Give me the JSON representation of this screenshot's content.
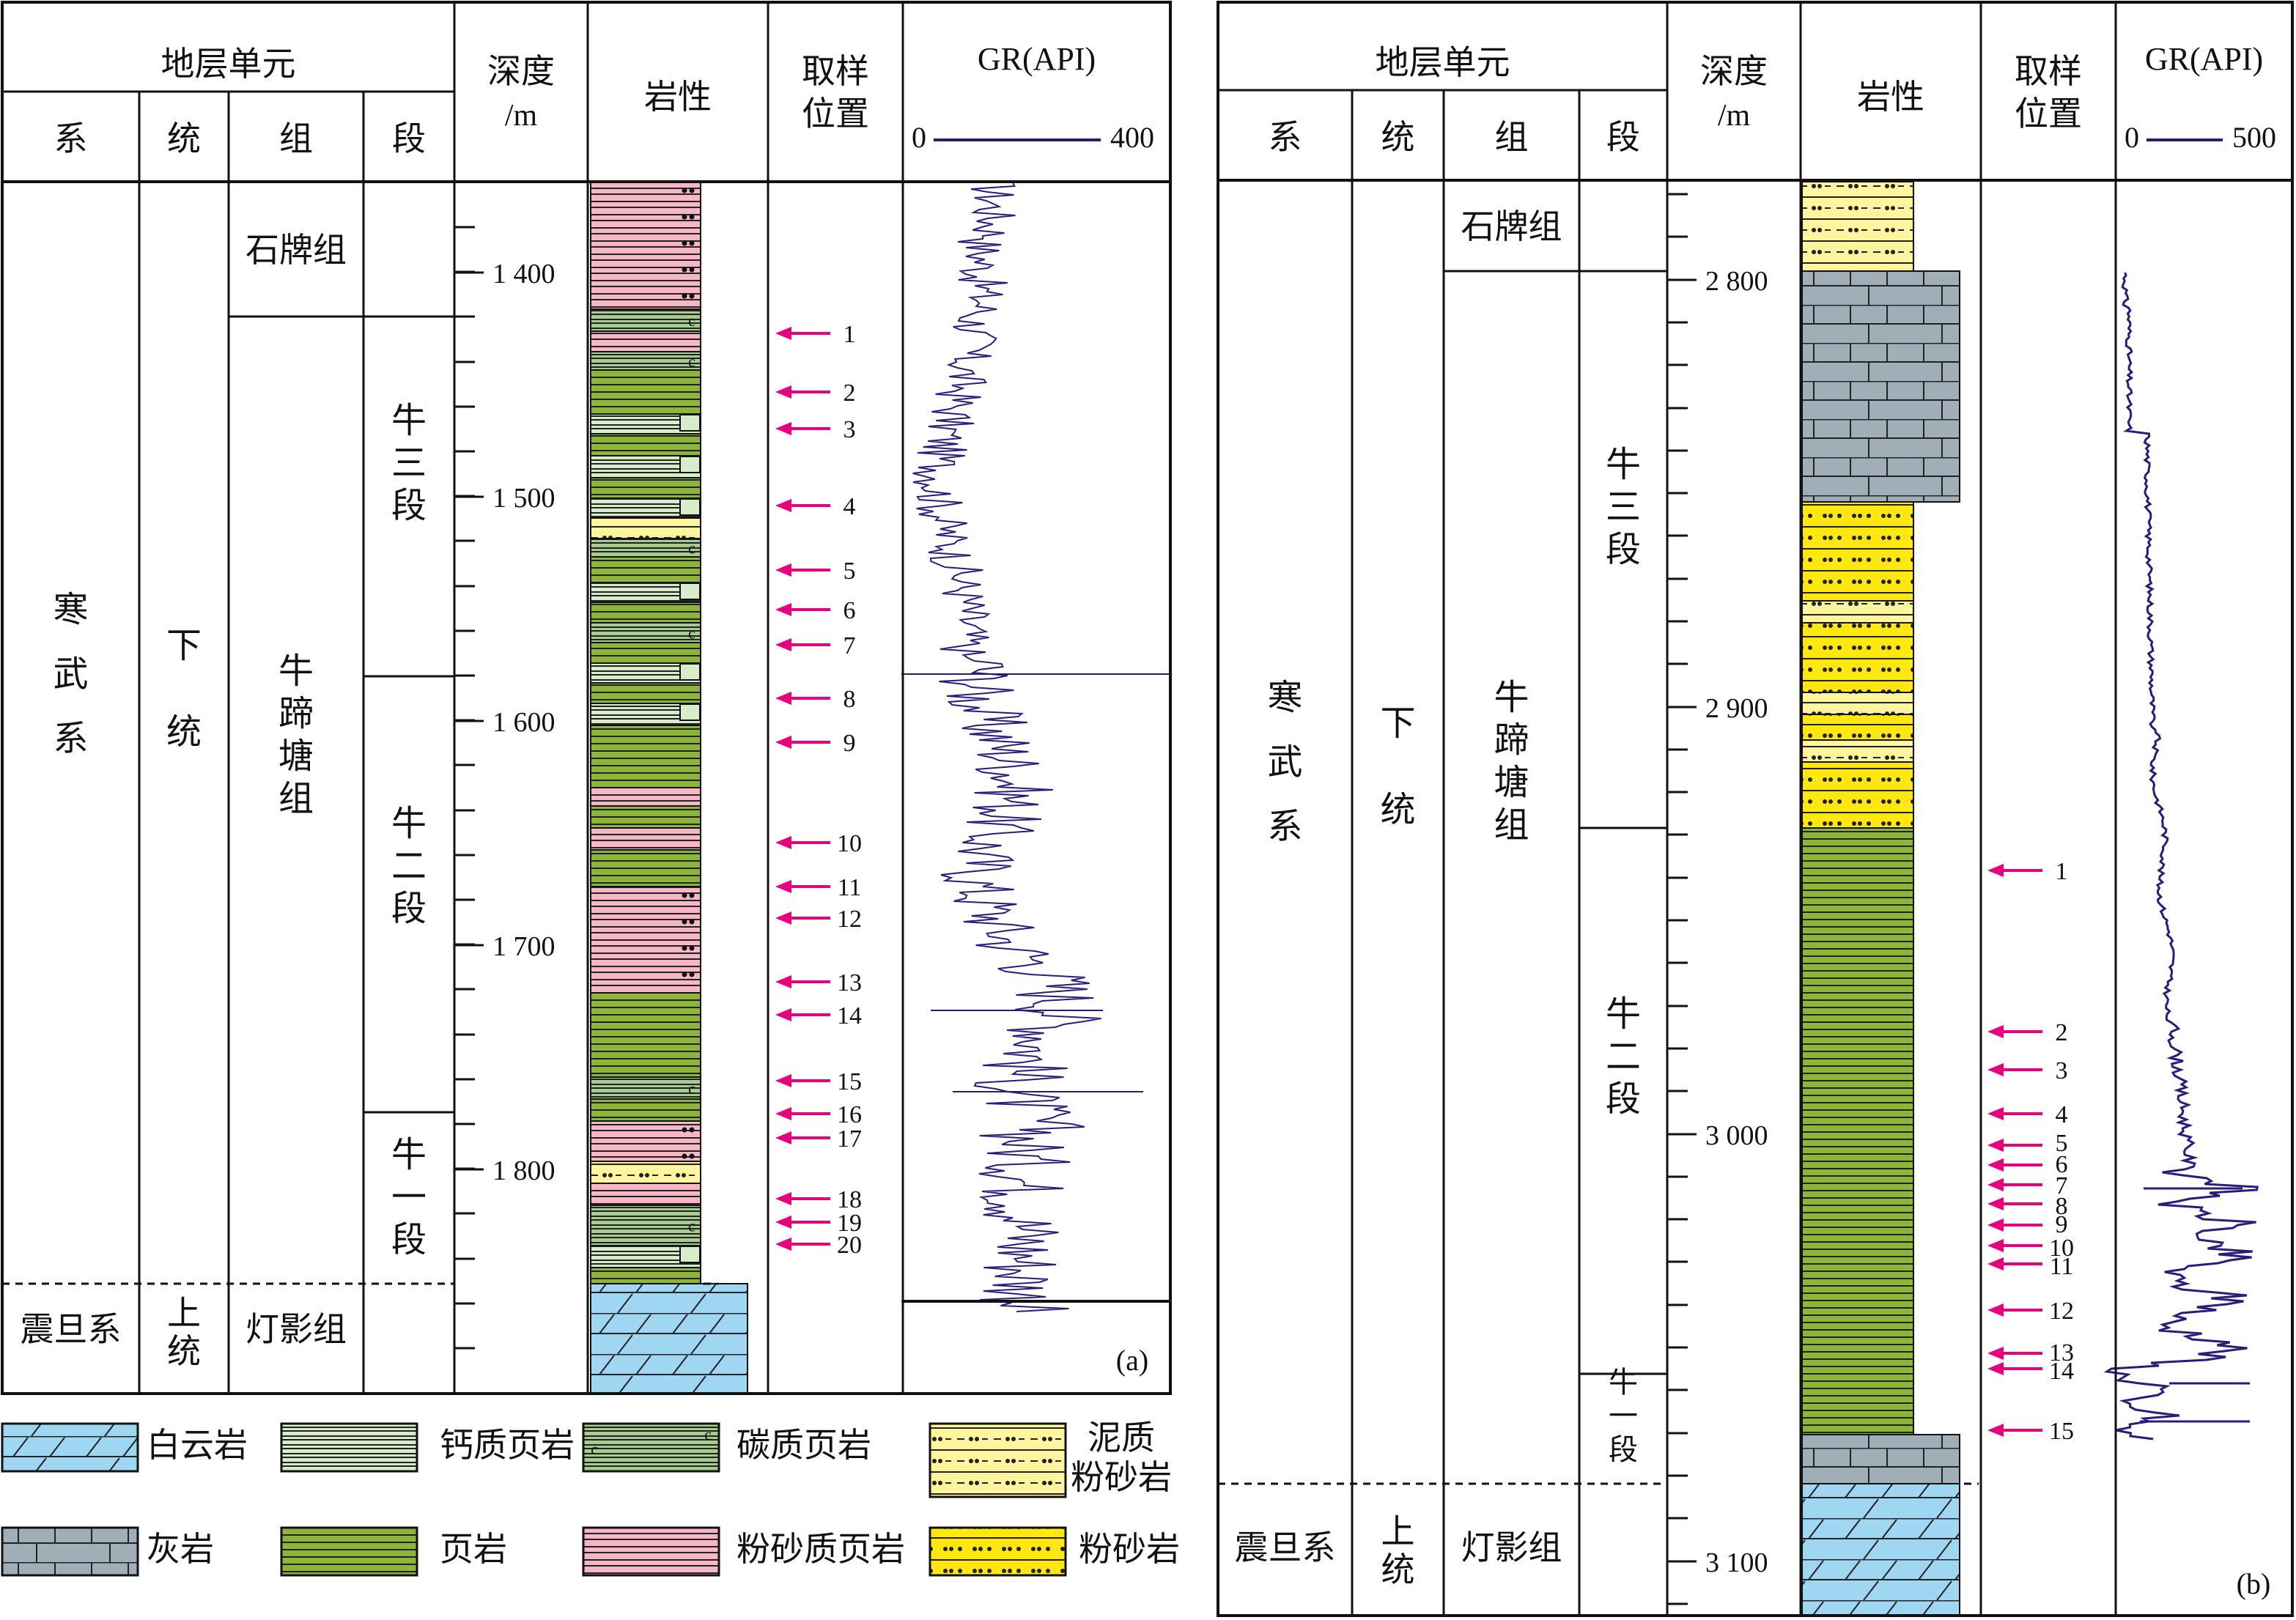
{
  "colors": {
    "pink": "#f7b6c8",
    "green": "#8db53c",
    "lightgreen": "#d9ecc9",
    "midgreen": "#a7cc8f",
    "yellow": "#ffe70f",
    "paleyellow": "#fff59e",
    "gray": "#9faeb7",
    "blue": "#9fd6f2",
    "arrow": "#e6007e",
    "curve": "#2d1a7a"
  },
  "header": {
    "strat_unit": "地层单元",
    "system": "系",
    "series": "统",
    "formation": "组",
    "member": "段",
    "depth": "深度",
    "depth_unit": "/m",
    "lithology": "岩性",
    "sample1": "取样",
    "sample2": "位置",
    "gr": "GR(API)"
  },
  "panel_a": {
    "tag": "(a)",
    "gr_min": "0",
    "gr_max": "400",
    "depth_ticks": [
      "1 400",
      "1 500",
      "1 600",
      "1 700",
      "1 800"
    ],
    "units": {
      "system": "寒武系",
      "series": "下统",
      "fm_top": "石牌组",
      "fm_main": "牛蹄塘组",
      "m3": "牛三段",
      "m2": "牛二段",
      "m1": "牛一段",
      "sys_base": "震旦系",
      "ser_base1": "上",
      "ser_base2": "统",
      "fm_base": "灯影组"
    },
    "samples": [
      "1",
      "2",
      "3",
      "4",
      "5",
      "6",
      "7",
      "8",
      "9",
      "10",
      "11",
      "12",
      "13",
      "14",
      "15",
      "16",
      "17",
      "18",
      "19",
      "20"
    ]
  },
  "panel_b": {
    "tag": "(b)",
    "gr_min": "0",
    "gr_max": "500",
    "depth_ticks": [
      "2 800",
      "2 900",
      "3 000",
      "3 100"
    ],
    "units": {
      "system": "寒武系",
      "series": "下统",
      "fm_top": "石牌组",
      "fm_main": "牛蹄塘组",
      "m3": "牛三段",
      "m2": "牛二段",
      "m1": "牛一段",
      "sys_base": "震旦系",
      "ser_base1": "上",
      "ser_base2": "统",
      "fm_base": "灯影组"
    },
    "samples": [
      "1",
      "2",
      "3",
      "4",
      "5",
      "6",
      "7",
      "8",
      "9",
      "10",
      "11",
      "12",
      "13",
      "14",
      "15"
    ]
  },
  "legend": {
    "dolomite": "白云岩",
    "calc_shale": "钙质页岩",
    "carb_shale": "碳质页岩",
    "mud_silt1": "泥质",
    "mud_silt2": "粉砂岩",
    "limestone": "灰岩",
    "shale": "页岩",
    "silty_shale": "粉砂质页岩",
    "siltstone": "粉砂岩"
  }
}
